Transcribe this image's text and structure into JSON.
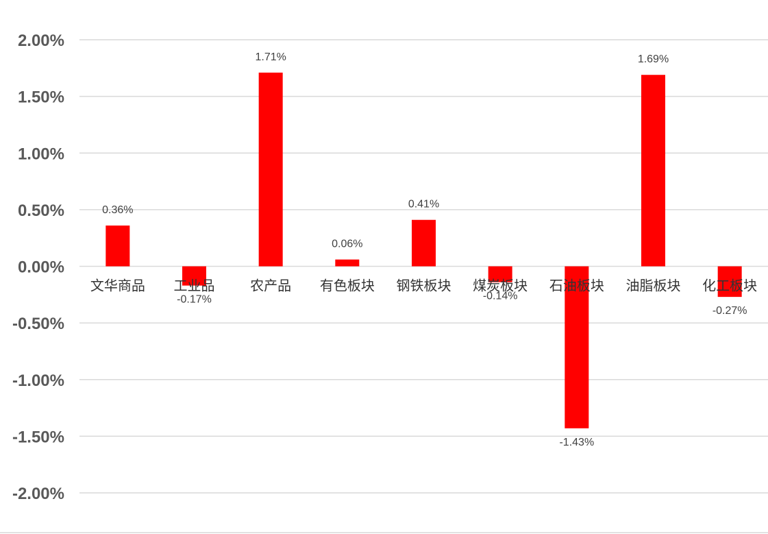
{
  "chart_data": {
    "type": "bar",
    "categories": [
      "文华商品",
      "工业品",
      "农产品",
      "有色板块",
      "钢铁板块",
      "煤炭板块",
      "石油板块",
      "油脂板块",
      "化工板块"
    ],
    "values": [
      0.36,
      -0.17,
      1.71,
      0.06,
      0.41,
      -0.14,
      -1.43,
      1.69,
      -0.27
    ],
    "value_labels": [
      "0.36%",
      "-0.17%",
      "1.71%",
      "0.06%",
      "0.41%",
      "-0.14%",
      "-1.43%",
      "1.69%",
      "-0.27%"
    ],
    "y_ticks": [
      "2.00%",
      "1.50%",
      "1.00%",
      "0.50%",
      "0.00%",
      "-0.50%",
      "-1.00%",
      "-1.50%",
      "-2.00%"
    ],
    "y_tick_values": [
      2.0,
      1.5,
      1.0,
      0.5,
      0.0,
      -0.5,
      -1.0,
      -1.5,
      -2.0
    ],
    "ylim": [
      -2.0,
      2.0
    ],
    "title": "",
    "xlabel": "",
    "ylabel": "",
    "grid": true,
    "legend": "none",
    "bar_color": "#ff0000",
    "unit": "%"
  }
}
